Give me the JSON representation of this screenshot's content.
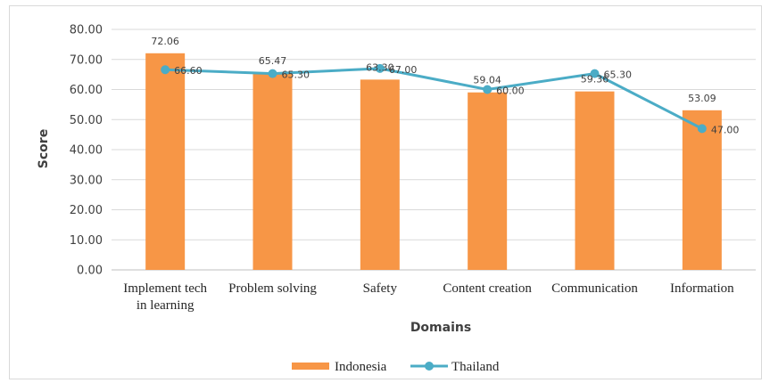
{
  "chart_data": {
    "type": "bar",
    "title": "",
    "xlabel": "Domains",
    "ylabel": "Score",
    "ylim": [
      0,
      80
    ],
    "yticks": [
      "0.00",
      "10.00",
      "20.00",
      "30.00",
      "40.00",
      "50.00",
      "60.00",
      "70.00",
      "80.00"
    ],
    "grid": true,
    "legend_position": "bottom",
    "categories": [
      [
        "Implement tech",
        "in learning"
      ],
      [
        "Problem solving"
      ],
      [
        "Safety"
      ],
      [
        "Content creation"
      ],
      [
        "Communication"
      ],
      [
        "Information"
      ]
    ],
    "series": [
      {
        "name": "Indonesia",
        "type": "bar",
        "color": "#f79646",
        "values": [
          72.06,
          65.47,
          63.3,
          59.04,
          59.36,
          53.09
        ],
        "labels": [
          "72.06",
          "65.47",
          "63.30",
          "59.04",
          "59.36",
          "53.09"
        ]
      },
      {
        "name": "Thailand",
        "type": "line",
        "color": "#4bacc6",
        "values": [
          66.6,
          65.3,
          67.0,
          60.0,
          65.3,
          47.0
        ],
        "labels": [
          "66.60",
          "65.30",
          "67.00",
          "60.00",
          "65.30",
          "47.00"
        ]
      }
    ]
  }
}
